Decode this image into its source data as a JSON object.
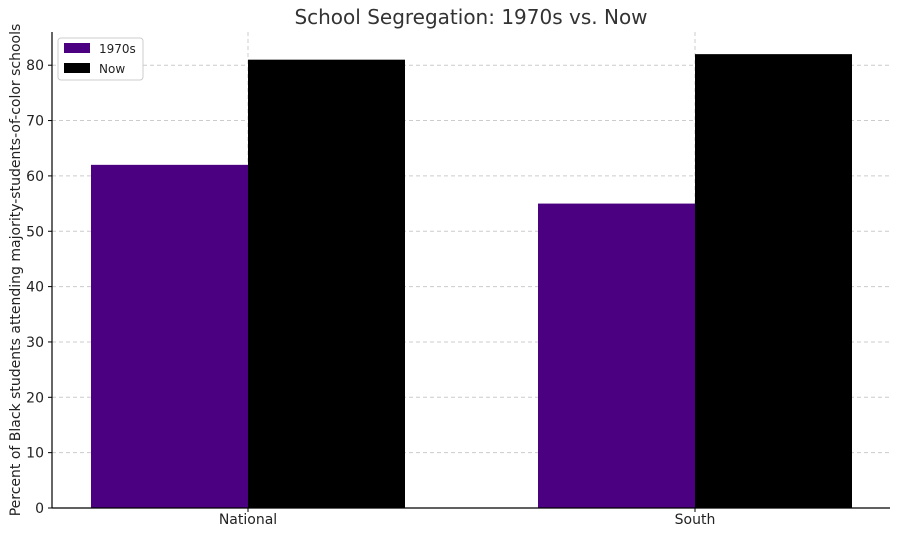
{
  "chart_data": {
    "type": "bar",
    "title": "School Segregation: 1970s vs. Now",
    "xlabel": "",
    "ylabel": "Percent of Black students attending majority-students-of-color schools",
    "categories": [
      "National",
      "South"
    ],
    "series": [
      {
        "name": "1970s",
        "values": [
          62,
          55
        ],
        "color": "#4b0082"
      },
      {
        "name": "Now",
        "values": [
          81,
          82
        ],
        "color": "#000000"
      }
    ],
    "ylim": [
      0,
      86
    ],
    "yticks": [
      0,
      10,
      20,
      30,
      40,
      50,
      60,
      70,
      80
    ],
    "grid": true,
    "legend_position": "top-left"
  }
}
